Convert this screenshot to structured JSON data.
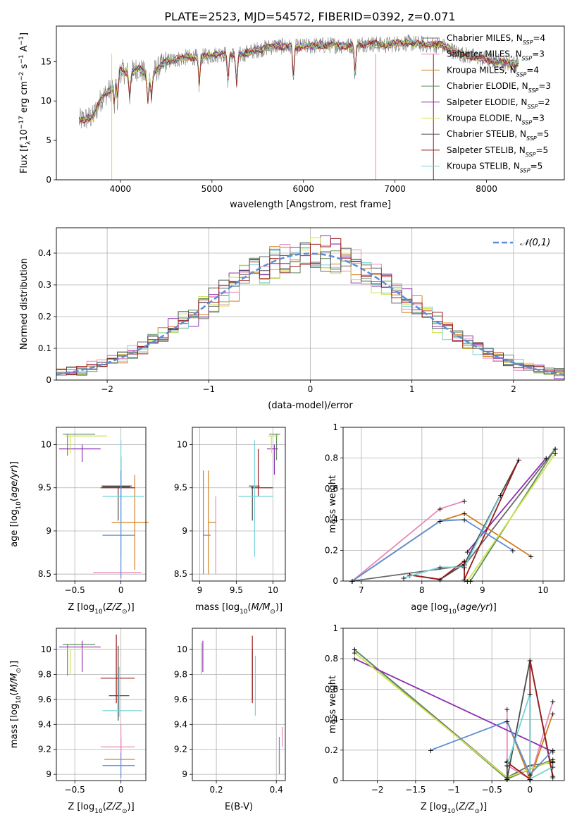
{
  "figure": {
    "title": "PLATE=2523, MJD=54572, FIBERID=0392, z=0.071"
  },
  "colors": {
    "series": [
      "#6a6a6a",
      "#e889b9",
      "#d27f1f",
      "#5f8d5f",
      "#8c2fb2",
      "#cfe34c",
      "#4a4a4a",
      "#9c1b1b",
      "#74d3d8"
    ],
    "normal_line": "#5b8ed6"
  },
  "chart_data": [
    {
      "id": "spectrum",
      "type": "line",
      "title": "PLATE=2523, MJD=54572, FIBERID=0392, z=0.071",
      "xlabel": "wavelength [Angstrom, rest frame]",
      "ylabel_main": "Flux [f",
      "ylabel_sub": "λ",
      "ylabel_rest": "10",
      "ylabel_exp": "−17",
      "ylabel_units": " erg cm",
      "ylabel_exp2": "−2",
      "ylabel_s": " s",
      "ylabel_exp3": "−1",
      "ylabel_a": " A",
      "ylabel_exp4": "−1",
      "ylabel_end": "]",
      "xlim": [
        3300,
        8850
      ],
      "ylim": [
        0,
        19.5
      ],
      "xticks": [
        4000,
        5000,
        6000,
        7000,
        8000
      ],
      "yticks": [
        0,
        5,
        10,
        15
      ],
      "legend_position": "right",
      "continuum": {
        "x": [
          3550,
          3700,
          3800,
          3900,
          3950,
          4000,
          4100,
          4200,
          4300,
          4400,
          4500,
          4700,
          4900,
          5100,
          5300,
          5500,
          5700,
          5900,
          6100,
          6300,
          6500,
          6700,
          6900,
          7100,
          7300,
          7500,
          7700,
          7900,
          8100,
          8300
        ],
        "y": [
          7.5,
          8.0,
          10.5,
          11.5,
          13.0,
          13.8,
          13.5,
          14.2,
          13.0,
          14.0,
          15.0,
          15.5,
          15.6,
          16.0,
          15.8,
          16.5,
          17.0,
          16.8,
          17.0,
          17.1,
          17.0,
          17.3,
          17.1,
          17.4,
          17.2,
          17.1,
          16.0,
          15.5,
          15.0,
          14.8
        ]
      },
      "series": [
        {
          "name": "Chabrier MILES",
          "nssp": "4"
        },
        {
          "name": "Salpeter MILES",
          "nssp": "3"
        },
        {
          "name": "Kroupa MILES",
          "nssp": "4"
        },
        {
          "name": "Chabrier ELODIE",
          "nssp": "3"
        },
        {
          "name": "Salpeter ELODIE",
          "nssp": "2"
        },
        {
          "name": "Kroupa ELODIE",
          "nssp": "3"
        },
        {
          "name": "Chabrier STELIB",
          "nssp": "5"
        },
        {
          "name": "Salpeter STELIB",
          "nssp": "5"
        },
        {
          "name": "Kroupa STELIB",
          "nssp": "5"
        }
      ],
      "legend_n": "N",
      "legend_ssp": "SSP"
    },
    {
      "id": "residuals",
      "type": "histogram",
      "xlabel": "(data-model)/error",
      "ylabel": "Normed distribution",
      "xlim": [
        -2.5,
        2.5
      ],
      "ylim": [
        0,
        0.48
      ],
      "xticks": [
        -2,
        -1,
        0,
        1,
        2
      ],
      "yticks": [
        0.0,
        0.1,
        0.2,
        0.3,
        0.4
      ],
      "grid": true,
      "bin_width": 0.1,
      "legend_label": "𝒩(0,1)",
      "legend_position": "top-right"
    },
    {
      "id": "age-vs-Z",
      "type": "errorbar",
      "xlabel": "Z [log10(Z/Z⊙)]",
      "ylabel": "age  [log10(age/yr)]",
      "xlim": [
        -0.7,
        0.27
      ],
      "ylim": [
        8.42,
        10.2
      ],
      "xticks": [
        -0.5,
        0.0
      ],
      "yticks": [
        8.5,
        9.0,
        9.5,
        10.0
      ],
      "grid": true
    },
    {
      "id": "age-vs-mass",
      "type": "errorbar",
      "xlabel": "mass [log10(M/M⊙)]",
      "xlim": [
        8.9,
        10.17
      ],
      "ylim": [
        8.42,
        10.2
      ],
      "xticks": [
        9.0,
        9.5,
        10.0
      ],
      "yticks": [
        8.5,
        9.0,
        9.5,
        10.0
      ],
      "grid": true
    },
    {
      "id": "weight-vs-age",
      "type": "line",
      "xlabel": "age  [log10(age/yr)]",
      "ylabel": "mass weight",
      "xlim": [
        6.7,
        10.35
      ],
      "ylim": [
        0.0,
        1.0
      ],
      "xticks": [
        7,
        8,
        9,
        10
      ],
      "yticks": [
        0.0,
        0.2,
        0.4,
        0.6,
        0.8,
        1.0
      ],
      "grid": true
    },
    {
      "id": "mass-vs-Z",
      "type": "errorbar",
      "xlabel": "Z [log10(Z/Z⊙)]",
      "ylabel": "mass [log10(M/M⊙)]",
      "xlim": [
        -0.7,
        0.27
      ],
      "ylim": [
        8.95,
        10.17
      ],
      "xticks": [
        -0.5,
        0.0
      ],
      "yticks": [
        9.0,
        9.2,
        9.4,
        9.6,
        9.8,
        10.0
      ],
      "grid": true
    },
    {
      "id": "mass-vs-ebv",
      "type": "errorbar",
      "xlabel": "E(B-V)",
      "xlim": [
        0.12,
        0.43
      ],
      "ylim": [
        8.95,
        10.17
      ],
      "xticks": [
        0.2,
        0.4
      ],
      "yticks": [
        9.0,
        9.2,
        9.4,
        9.6,
        9.8,
        10.0
      ],
      "grid": true
    },
    {
      "id": "weight-vs-Z",
      "type": "line",
      "xlabel": "Z [log10(Z/Z⊙)]",
      "ylabel": "mass weight",
      "xlim": [
        -2.45,
        0.45
      ],
      "ylim": [
        0.0,
        1.0
      ],
      "xticks": [
        -2.0,
        -1.5,
        -1.0,
        -0.5,
        0.0
      ],
      "yticks": [
        0.0,
        0.2,
        0.4,
        0.6,
        0.8,
        1.0
      ],
      "grid": true
    }
  ],
  "ssp_data": {
    "age_Z_marks": [
      {
        "s": 0,
        "x": 0.0,
        "y": 9.51,
        "xerr": [
          0.2,
          0.1
        ],
        "yerr": [
          0.15,
          0.35
        ]
      },
      {
        "s": 1,
        "x": 0.0,
        "y": 8.52,
        "xerr": [
          0.3,
          0.22
        ],
        "yerr": [
          0.0,
          0.0
        ]
      },
      {
        "s": 2,
        "x": 0.0,
        "y": 9.1,
        "xerr": [
          0.25,
          0.2
        ],
        "yerr": [
          0.55,
          0.55
        ]
      },
      {
        "s": 3,
        "x": -0.58,
        "y": 10.12,
        "xerr": [
          0.05,
          0.3
        ],
        "yerr": [
          0.25,
          0.0
        ]
      },
      {
        "s": 4,
        "x": -0.42,
        "y": 9.95,
        "xerr": [
          0.25,
          0.2
        ],
        "yerr": [
          0.15,
          0.05
        ]
      },
      {
        "s": 5,
        "x": -0.55,
        "y": 10.1,
        "xerr": [
          0.05,
          0.4
        ],
        "yerr": [
          0.2,
          0.0
        ]
      },
      {
        "s": 6,
        "x": -0.03,
        "y": 9.52,
        "xerr": [
          0.18,
          0.15
        ],
        "yerr": [
          0.4,
          0.0
        ]
      },
      {
        "s": 7,
        "x": -0.05,
        "y": 9.5,
        "xerr": [
          0.17,
          0.2
        ],
        "yerr": [
          0.0,
          0.0
        ]
      },
      {
        "s": 8,
        "x": 0.0,
        "y": 9.4,
        "xerr": [
          0.25,
          0.25
        ],
        "yerr": [
          0.75,
          0.65
        ]
      },
      {
        "s": "c",
        "x": 0.0,
        "y": 8.95,
        "xerr": [
          0.25,
          0.15
        ],
        "yerr": [
          0.0,
          0.0
        ]
      }
    ]
  }
}
